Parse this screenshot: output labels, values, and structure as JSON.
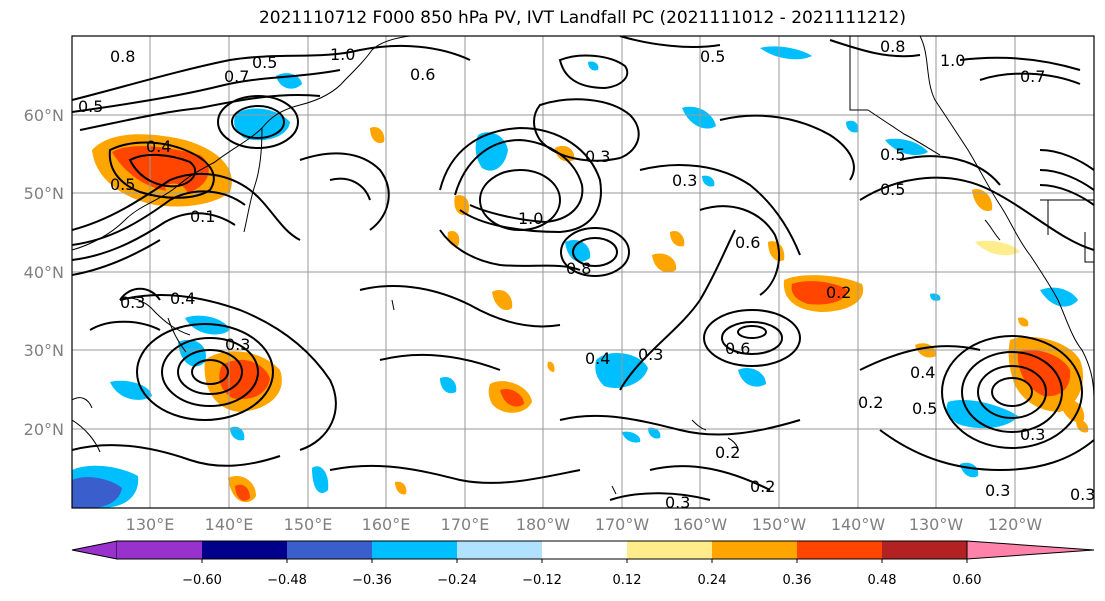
{
  "title": "2021110712 F000 850 hPa PV, IVT Landfall PC (2021111012 - 2021111212)",
  "latitude_labels": [
    "60°N",
    "50°N",
    "40°N",
    "30°N",
    "20°N"
  ],
  "longitude_labels": [
    "130°E",
    "140°E",
    "150°E",
    "160°E",
    "170°E",
    "180°W",
    "170°W",
    "160°W",
    "150°W",
    "140°W",
    "130°W",
    "120°W"
  ],
  "contour_labels": [
    "0.8",
    "0.7",
    "0.5",
    "1.0",
    "0.6",
    "0.5",
    "0.8",
    "1.0",
    "0.5",
    "0.7",
    "0.5",
    "0.4",
    "0.5",
    "0.1",
    "0.3",
    "0.4",
    "0.3",
    "0.3",
    "1.0",
    "0.3",
    "0.5",
    "0.6",
    "0.8",
    "0.2",
    "0.4",
    "0.3",
    "0.6",
    "0.2",
    "0.4",
    "0.5",
    "0.3",
    "0.2",
    "0.2",
    "0.3",
    "0.3",
    "0.3"
  ],
  "colorbar": {
    "tick_labels": [
      "−0.60",
      "−0.48",
      "−0.36",
      "−0.24",
      "−0.12",
      "0.12",
      "0.24",
      "0.36",
      "0.48",
      "0.60"
    ],
    "colors": [
      "#9932cc",
      "#00008b",
      "#3a5fcd",
      "#00bfff",
      "#b0e2ff",
      "#ffffff",
      "#ffec8b",
      "#ffa500",
      "#ff4500",
      "#b22222",
      "#ff82ab"
    ]
  },
  "colors": {
    "neg_strong": "#3a5fcd",
    "neg": "#00bfff",
    "neg_light": "#b0e2ff",
    "pos_light": "#ffec8b",
    "pos": "#ffa500",
    "pos_strong": "#ff4500",
    "pos_stronger": "#b22222"
  }
}
